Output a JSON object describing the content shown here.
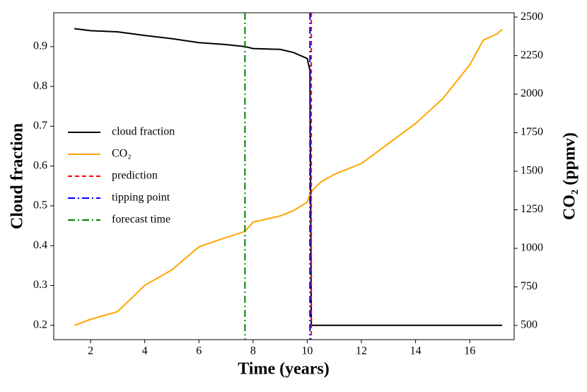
{
  "chart_data": {
    "type": "line",
    "xlabel": "Time (years)",
    "ylabel": "Cloud fraction",
    "y2label": "CO₂ (ppmv)",
    "x": [
      1.4,
      2,
      3,
      4,
      5,
      6,
      7,
      7.7,
      8,
      9,
      9.5,
      10,
      10.1,
      10.15,
      10.5,
      11,
      12,
      13,
      14,
      15,
      16,
      16.5,
      17,
      17.2
    ],
    "series": [
      {
        "name": "cloud fraction",
        "color": "#000000",
        "axis": "y",
        "values": [
          0.945,
          0.94,
          0.937,
          0.928,
          0.92,
          0.91,
          0.905,
          0.9,
          0.895,
          0.893,
          0.885,
          0.87,
          0.84,
          0.2,
          0.2,
          0.2,
          0.2,
          0.2,
          0.2,
          0.2,
          0.2,
          0.2,
          0.2,
          0.2
        ]
      },
      {
        "name": "CO₂",
        "color": "#ffa500",
        "axis": "y2",
        "values": [
          500,
          540,
          590,
          760,
          860,
          1010,
          1070,
          1110,
          1170,
          1210,
          1245,
          1300,
          1350,
          1370,
          1430,
          1480,
          1550,
          1680,
          1810,
          1970,
          2190,
          2350,
          2390,
          2420
        ]
      }
    ],
    "vlines": [
      {
        "name": "prediction",
        "color": "#ff0000",
        "style": "dashed",
        "x": 10.15
      },
      {
        "name": "tipping point",
        "color": "#0000ff",
        "style": "dashdot",
        "x": 10.1
      },
      {
        "name": "forecast time",
        "color": "#008000",
        "style": "dashdot",
        "x": 7.7
      }
    ],
    "xlim": [
      0.64,
      17.64
    ],
    "xticks": [
      2,
      4,
      6,
      8,
      10,
      12,
      14,
      16
    ],
    "ylim": [
      0.164,
      0.985
    ],
    "yticks": [
      0.2,
      0.3,
      0.4,
      0.5,
      0.6,
      0.7,
      0.8,
      0.9
    ],
    "y2lim": [
      408,
      2528
    ],
    "y2ticks": [
      500,
      750,
      1000,
      1250,
      1500,
      1750,
      2000,
      2250,
      2500
    ],
    "legend": "center left",
    "grid": false
  }
}
